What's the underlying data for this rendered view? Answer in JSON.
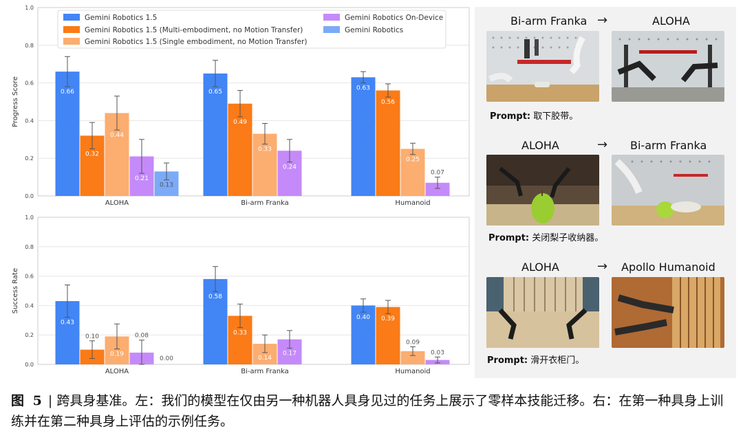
{
  "chart_data": [
    {
      "type": "bar",
      "ylabel": "Progress Score",
      "ylim": [
        0,
        1.0
      ],
      "yticks": [
        "0.0",
        "0.2",
        "0.4",
        "0.6",
        "0.8",
        "1.0"
      ],
      "categories": [
        "ALOHA",
        "Bi-arm Franka",
        "Humanoid"
      ],
      "grid": true,
      "legend_position": "top",
      "series": [
        {
          "name": "Gemini Robotics 1.5",
          "color": "#4285f4",
          "values": [
            0.66,
            0.65,
            0.63
          ],
          "labels": [
            "0.66",
            "0.65",
            "0.63"
          ],
          "errors": [
            0.08,
            0.07,
            0.03
          ]
        },
        {
          "name": "Gemini Robotics 1.5 (Multi-embodiment, no Motion Transfer)",
          "color": "#fa7b17",
          "values": [
            0.32,
            0.49,
            0.56
          ],
          "labels": [
            "0.32",
            "0.49",
            "0.56"
          ],
          "errors": [
            0.07,
            0.07,
            0.035
          ]
        },
        {
          "name": "Gemini Robotics 1.5 (Single embodiment, no Motion Transfer)",
          "color": "#fcad70",
          "values": [
            0.44,
            0.33,
            0.25
          ],
          "labels": [
            "0.44",
            "0.33",
            "0.25"
          ],
          "errors": [
            0.09,
            0.055,
            0.03
          ]
        },
        {
          "name": "Gemini Robotics On-Device",
          "color": "#c58af9",
          "values": [
            0.21,
            0.24,
            0.07
          ],
          "labels": [
            "0.21",
            "0.24",
            "0.07"
          ],
          "errors": [
            0.09,
            0.06,
            0.03
          ]
        },
        {
          "name": "Gemini Robotics",
          "color": "#7baaf7",
          "values": [
            0.13,
            null,
            null
          ],
          "labels": [
            "0.13",
            "",
            ""
          ],
          "errors": [
            0.045,
            0,
            0
          ]
        }
      ]
    },
    {
      "type": "bar",
      "ylabel": "Success Rate",
      "ylim": [
        0,
        1.0
      ],
      "yticks": [
        "0.0",
        "0.2",
        "0.4",
        "0.6",
        "0.8",
        "1.0"
      ],
      "categories": [
        "ALOHA",
        "Bi-arm Franka",
        "Humanoid"
      ],
      "grid": true,
      "series": [
        {
          "name": "Gemini Robotics 1.5",
          "color": "#4285f4",
          "values": [
            0.43,
            0.58,
            0.4
          ],
          "labels": [
            "0.43",
            "0.58",
            "0.40"
          ],
          "errors": [
            0.11,
            0.085,
            0.045
          ]
        },
        {
          "name": "Gemini Robotics 1.5 (Multi-embodiment, no Motion Transfer)",
          "color": "#fa7b17",
          "values": [
            0.1,
            0.33,
            0.39
          ],
          "labels": [
            "0.10",
            "0.33",
            "0.39"
          ],
          "errors": [
            0.06,
            0.08,
            0.045
          ]
        },
        {
          "name": "Gemini Robotics 1.5 (Single embodiment, no Motion Transfer)",
          "color": "#fcad70",
          "values": [
            0.19,
            0.14,
            0.09
          ],
          "labels": [
            "0.19",
            "0.14",
            "0.09"
          ],
          "errors": [
            0.085,
            0.06,
            0.03
          ]
        },
        {
          "name": "Gemini Robotics On-Device",
          "color": "#c58af9",
          "values": [
            0.08,
            0.17,
            0.03
          ],
          "labels": [
            "0.08",
            "0.17",
            "0.03"
          ],
          "errors": [
            0.085,
            0.06,
            0.02
          ]
        },
        {
          "name": "Gemini Robotics",
          "color": "#7baaf7",
          "values": [
            0.0,
            null,
            null
          ],
          "labels": [
            "0.00",
            "",
            ""
          ],
          "errors": [
            0,
            0,
            0
          ]
        }
      ]
    }
  ],
  "examples": [
    {
      "from": "Bi-arm Franka",
      "arrow": "→",
      "to": "ALOHA",
      "prompt_label": "Prompt:",
      "prompt_text": "取下胶带。"
    },
    {
      "from": "ALOHA",
      "arrow": "→",
      "to": "Bi-arm Franka",
      "prompt_label": "Prompt:",
      "prompt_text": "关闭梨子收纳器。"
    },
    {
      "from": "ALOHA",
      "arrow": "→",
      "to": "Apollo Humanoid",
      "prompt_label": "Prompt:",
      "prompt_text": "滑开衣柜门。"
    }
  ],
  "caption": {
    "figure_label": "图 5",
    "text": "| 跨具身基准。左：我们的模型在仅由另一种机器人具身见过的任务上展示了零样本技能迁移。右：在第一种具身上训练并在第二种具身上评估的示例任务。"
  }
}
